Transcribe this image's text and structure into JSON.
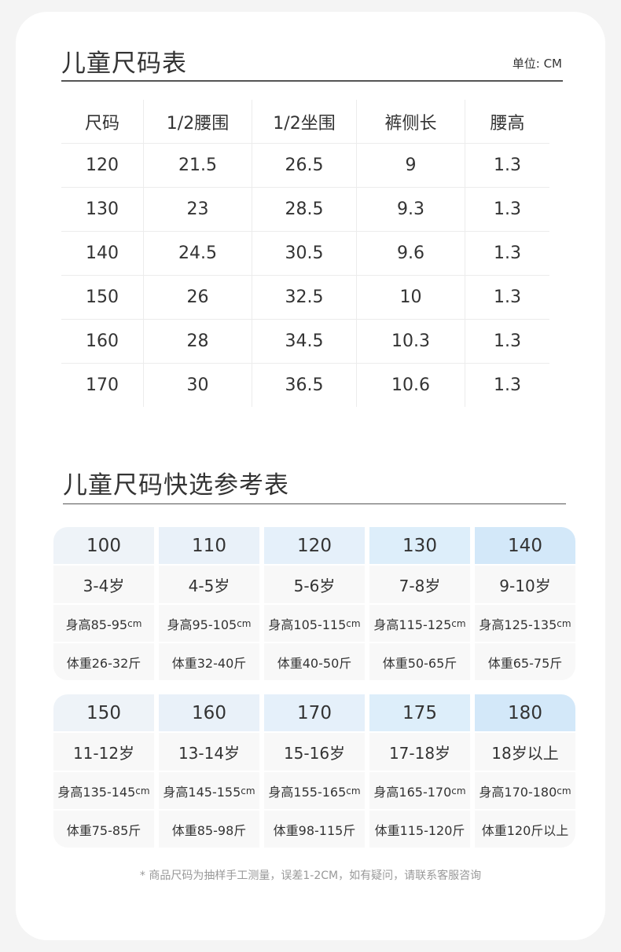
{
  "size_chart": {
    "title": "儿童尺码表",
    "unit": "单位: CM",
    "headers": [
      "尺码",
      "1/2腰围",
      "1/2坐围",
      "裤侧长",
      "腰高"
    ],
    "rows": [
      [
        "120",
        "21.5",
        "26.5",
        "9",
        "1.3"
      ],
      [
        "130",
        "23",
        "28.5",
        "9.3",
        "1.3"
      ],
      [
        "140",
        "24.5",
        "30.5",
        "9.6",
        "1.3"
      ],
      [
        "150",
        "26",
        "32.5",
        "10",
        "1.3"
      ],
      [
        "160",
        "28",
        "34.5",
        "10.3",
        "1.3"
      ],
      [
        "170",
        "30",
        "36.5",
        "10.6",
        "1.3"
      ]
    ]
  },
  "quick_ref": {
    "title": "儿童尺码快选参考表",
    "height_unit": "cm",
    "header_colors": [
      "#eef3f8",
      "#e9f1f9",
      "#e5f0fa",
      "#ddeefa",
      "#d3e8f9"
    ],
    "groups": [
      [
        {
          "size": "100",
          "age": "3-4岁",
          "height": "身高85-95",
          "weight": "体重26-32斤"
        },
        {
          "size": "110",
          "age": "4-5岁",
          "height": "身高95-105",
          "weight": "体重32-40斤"
        },
        {
          "size": "120",
          "age": "5-6岁",
          "height": "身高105-115",
          "weight": "体重40-50斤"
        },
        {
          "size": "130",
          "age": "7-8岁",
          "height": "身高115-125",
          "weight": "体重50-65斤"
        },
        {
          "size": "140",
          "age": "9-10岁",
          "height": "身高125-135",
          "weight": "体重65-75斤"
        }
      ],
      [
        {
          "size": "150",
          "age": "11-12岁",
          "height": "身高135-145",
          "weight": "体重75-85斤"
        },
        {
          "size": "160",
          "age": "13-14岁",
          "height": "身高145-155",
          "weight": "体重85-98斤"
        },
        {
          "size": "170",
          "age": "15-16岁",
          "height": "身高155-165",
          "weight": "体重98-115斤"
        },
        {
          "size": "175",
          "age": "17-18岁",
          "height": "身高165-170",
          "weight": "体重115-120斤"
        },
        {
          "size": "180",
          "age": "18岁以上",
          "height": "身高170-180",
          "weight": "体重120斤以上"
        }
      ]
    ]
  },
  "note": "* 商品尺码为抽样手工测量，误差1-2CM，如有疑问，请联系客服咨询"
}
